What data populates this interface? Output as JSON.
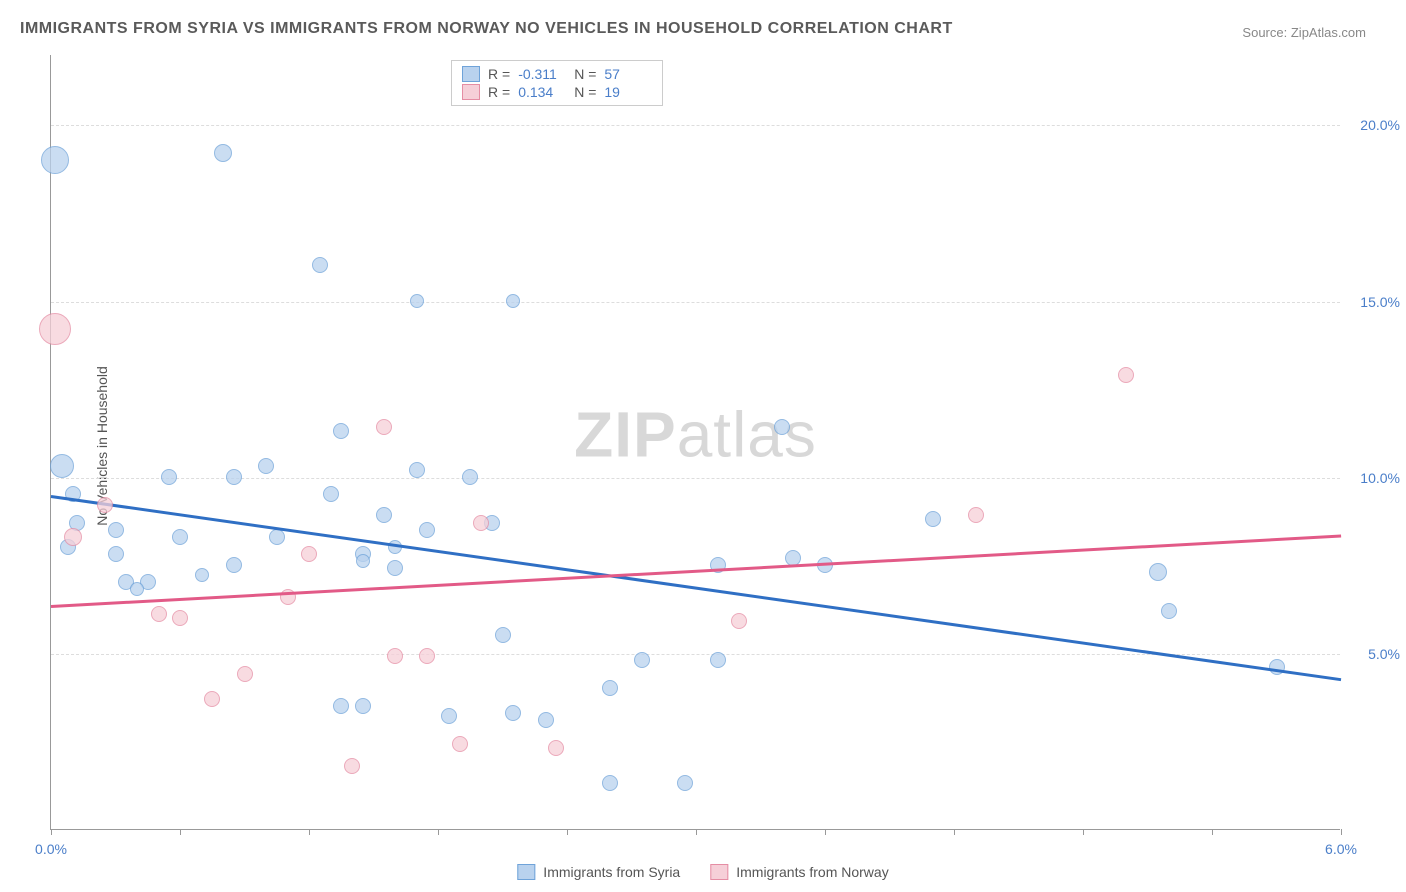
{
  "title": "IMMIGRANTS FROM SYRIA VS IMMIGRANTS FROM NORWAY NO VEHICLES IN HOUSEHOLD CORRELATION CHART",
  "source_label": "Source:",
  "source_value": "ZipAtlas.com",
  "ylabel": "No Vehicles in Household",
  "watermark_a": "ZIP",
  "watermark_b": "atlas",
  "chart": {
    "type": "scatter",
    "xlim": [
      0.0,
      6.0
    ],
    "ylim": [
      0.0,
      22.0
    ],
    "ytick_values": [
      5.0,
      10.0,
      15.0,
      20.0
    ],
    "ytick_labels": [
      "5.0%",
      "10.0%",
      "15.0%",
      "20.0%"
    ],
    "xtick_values": [
      0.0,
      0.6,
      1.2,
      1.8,
      2.4,
      3.0,
      3.6,
      4.2,
      4.8,
      5.4,
      6.0
    ],
    "xtick_labels_shown": {
      "0.0": "0.0%",
      "6.0": "6.0%"
    },
    "background_color": "#ffffff",
    "grid_color": "#dddddd",
    "series": [
      {
        "name": "Immigrants from Syria",
        "fill": "#b9d2ee",
        "stroke": "#6fa3d9",
        "fill_opacity": 0.75,
        "r_value": "-0.311",
        "n_value": "57",
        "trend": {
          "x1": 0.0,
          "y1": 9.5,
          "x2": 6.0,
          "y2": 4.3,
          "color": "#2f6fc4",
          "width": 2.5
        },
        "points": [
          {
            "x": 0.02,
            "y": 19.0,
            "r": 14
          },
          {
            "x": 0.8,
            "y": 19.2,
            "r": 9
          },
          {
            "x": 1.25,
            "y": 16.0,
            "r": 8
          },
          {
            "x": 1.7,
            "y": 15.0,
            "r": 7
          },
          {
            "x": 2.15,
            "y": 15.0,
            "r": 7
          },
          {
            "x": 0.05,
            "y": 10.3,
            "r": 12
          },
          {
            "x": 0.1,
            "y": 9.5,
            "r": 8
          },
          {
            "x": 0.12,
            "y": 8.7,
            "r": 8
          },
          {
            "x": 0.08,
            "y": 8.0,
            "r": 8
          },
          {
            "x": 0.3,
            "y": 8.5,
            "r": 8
          },
          {
            "x": 0.3,
            "y": 7.8,
            "r": 8
          },
          {
            "x": 0.35,
            "y": 7.0,
            "r": 8
          },
          {
            "x": 0.45,
            "y": 7.0,
            "r": 8
          },
          {
            "x": 0.4,
            "y": 6.8,
            "r": 7
          },
          {
            "x": 0.55,
            "y": 10.0,
            "r": 8
          },
          {
            "x": 0.6,
            "y": 8.3,
            "r": 8
          },
          {
            "x": 0.7,
            "y": 7.2,
            "r": 7
          },
          {
            "x": 0.85,
            "y": 10.0,
            "r": 8
          },
          {
            "x": 0.85,
            "y": 7.5,
            "r": 8
          },
          {
            "x": 1.0,
            "y": 10.3,
            "r": 8
          },
          {
            "x": 1.05,
            "y": 8.3,
            "r": 8
          },
          {
            "x": 1.3,
            "y": 9.5,
            "r": 8
          },
          {
            "x": 1.35,
            "y": 11.3,
            "r": 8
          },
          {
            "x": 1.35,
            "y": 3.5,
            "r": 8
          },
          {
            "x": 1.45,
            "y": 7.8,
            "r": 8
          },
          {
            "x": 1.45,
            "y": 7.6,
            "r": 7
          },
          {
            "x": 1.55,
            "y": 8.9,
            "r": 8
          },
          {
            "x": 1.6,
            "y": 8.0,
            "r": 7
          },
          {
            "x": 1.6,
            "y": 7.4,
            "r": 8
          },
          {
            "x": 1.7,
            "y": 10.2,
            "r": 8
          },
          {
            "x": 1.75,
            "y": 8.5,
            "r": 8
          },
          {
            "x": 1.45,
            "y": 3.5,
            "r": 8
          },
          {
            "x": 1.85,
            "y": 3.2,
            "r": 8
          },
          {
            "x": 1.95,
            "y": 10.0,
            "r": 8
          },
          {
            "x": 2.05,
            "y": 8.7,
            "r": 8
          },
          {
            "x": 2.1,
            "y": 5.5,
            "r": 8
          },
          {
            "x": 2.15,
            "y": 3.3,
            "r": 8
          },
          {
            "x": 2.3,
            "y": 3.1,
            "r": 8
          },
          {
            "x": 2.6,
            "y": 4.0,
            "r": 8
          },
          {
            "x": 2.6,
            "y": 1.3,
            "r": 8
          },
          {
            "x": 2.75,
            "y": 4.8,
            "r": 8
          },
          {
            "x": 2.95,
            "y": 1.3,
            "r": 8
          },
          {
            "x": 3.1,
            "y": 4.8,
            "r": 8
          },
          {
            "x": 3.1,
            "y": 7.5,
            "r": 8
          },
          {
            "x": 3.4,
            "y": 11.4,
            "r": 8
          },
          {
            "x": 3.45,
            "y": 7.7,
            "r": 8
          },
          {
            "x": 3.6,
            "y": 7.5,
            "r": 8
          },
          {
            "x": 4.1,
            "y": 8.8,
            "r": 8
          },
          {
            "x": 5.15,
            "y": 7.3,
            "r": 9
          },
          {
            "x": 5.2,
            "y": 6.2,
            "r": 8
          },
          {
            "x": 5.7,
            "y": 4.6,
            "r": 8
          }
        ]
      },
      {
        "name": "Immigrants from Norway",
        "fill": "#f6cfd8",
        "stroke": "#e58da4",
        "fill_opacity": 0.75,
        "r_value": "0.134",
        "n_value": "19",
        "trend": {
          "x1": 0.0,
          "y1": 6.4,
          "x2": 6.0,
          "y2": 8.4,
          "color": "#e25a87",
          "width": 2.5
        },
        "points": [
          {
            "x": 0.02,
            "y": 14.2,
            "r": 16
          },
          {
            "x": 0.1,
            "y": 8.3,
            "r": 9
          },
          {
            "x": 0.25,
            "y": 9.2,
            "r": 8
          },
          {
            "x": 0.5,
            "y": 6.1,
            "r": 8
          },
          {
            "x": 0.6,
            "y": 6.0,
            "r": 8
          },
          {
            "x": 0.75,
            "y": 3.7,
            "r": 8
          },
          {
            "x": 0.9,
            "y": 4.4,
            "r": 8
          },
          {
            "x": 1.1,
            "y": 6.6,
            "r": 8
          },
          {
            "x": 1.2,
            "y": 7.8,
            "r": 8
          },
          {
            "x": 1.4,
            "y": 1.8,
            "r": 8
          },
          {
            "x": 1.55,
            "y": 11.4,
            "r": 8
          },
          {
            "x": 1.6,
            "y": 4.9,
            "r": 8
          },
          {
            "x": 1.75,
            "y": 4.9,
            "r": 8
          },
          {
            "x": 1.9,
            "y": 2.4,
            "r": 8
          },
          {
            "x": 2.0,
            "y": 8.7,
            "r": 8
          },
          {
            "x": 2.35,
            "y": 2.3,
            "r": 8
          },
          {
            "x": 3.2,
            "y": 5.9,
            "r": 8
          },
          {
            "x": 4.3,
            "y": 8.9,
            "r": 8
          },
          {
            "x": 5.0,
            "y": 12.9,
            "r": 8
          }
        ]
      }
    ]
  },
  "legend_top_labels": {
    "r": "R =",
    "n": "N ="
  },
  "legend_bottom": [
    {
      "label": "Immigrants from Syria",
      "fill": "#b9d2ee",
      "stroke": "#6fa3d9"
    },
    {
      "label": "Immigrants from Norway",
      "fill": "#f6cfd8",
      "stroke": "#e58da4"
    }
  ]
}
